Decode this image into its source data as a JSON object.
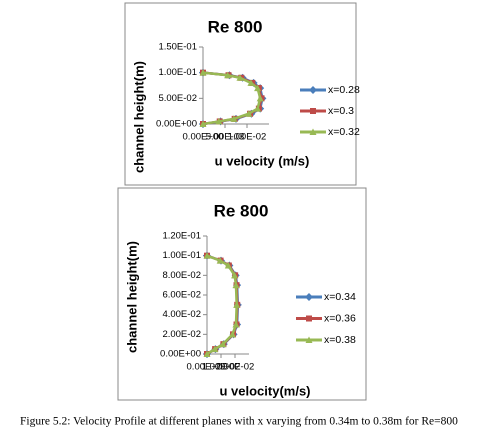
{
  "chart_data": [
    {
      "type": "line",
      "title": "Re 800",
      "ylabel": "channel height(m)",
      "xlabel": "u velocity (m/s)",
      "xlim": [
        0,
        0.015
      ],
      "xticks": [
        {
          "value": 0,
          "label": "0.00E+00"
        },
        {
          "value": 0.005,
          "label": "5.00E-03"
        },
        {
          "value": 0.01,
          "label": "1.00E-02"
        }
      ],
      "ylim": [
        0,
        0.15
      ],
      "yticks": [
        {
          "value": 0,
          "label": "0.00E+00"
        },
        {
          "value": 0.05,
          "label": "5.00E-02"
        },
        {
          "value": 0.1,
          "label": "1.00E-01"
        },
        {
          "value": 0.15,
          "label": "1.50E-01"
        }
      ],
      "series": [
        {
          "name": "x=0.28",
          "color": "#4a7ebb",
          "marker": "diamond",
          "x": [
            0,
            0.004,
            0.0075,
            0.011,
            0.013,
            0.0135,
            0.013,
            0.0115,
            0.009,
            0.006,
            0
          ],
          "values": [
            0,
            0.005,
            0.01,
            0.02,
            0.03,
            0.05,
            0.07,
            0.08,
            0.09,
            0.095,
            0.1
          ]
        },
        {
          "name": "x=0.3",
          "color": "#be4b48",
          "marker": "square",
          "x": [
            0,
            0.0038,
            0.0072,
            0.0107,
            0.0127,
            0.0133,
            0.0127,
            0.0112,
            0.0087,
            0.0058,
            0
          ],
          "values": [
            0,
            0.005,
            0.01,
            0.02,
            0.03,
            0.05,
            0.07,
            0.08,
            0.09,
            0.095,
            0.1
          ]
        },
        {
          "name": "x=0.32",
          "color": "#98b954",
          "marker": "triangle",
          "x": [
            0,
            0.0036,
            0.007,
            0.0104,
            0.0124,
            0.013,
            0.0124,
            0.0109,
            0.0084,
            0.0056,
            0
          ],
          "values": [
            0,
            0.005,
            0.01,
            0.02,
            0.03,
            0.05,
            0.07,
            0.08,
            0.09,
            0.095,
            0.1
          ]
        }
      ]
    },
    {
      "type": "line",
      "title": "Re 800",
      "ylabel": "channel height(m)",
      "xlabel": "u velocity(m/s)",
      "xlim": [
        0,
        0.03
      ],
      "xticks": [
        {
          "value": 0,
          "label": "0.00E+00"
        },
        {
          "value": 0.01,
          "label": "1.00E-02"
        },
        {
          "value": 0.02,
          "label": "2.00E-02"
        }
      ],
      "ylim": [
        0,
        0.12
      ],
      "yticks": [
        {
          "value": 0,
          "label": "0.00E+00"
        },
        {
          "value": 0.02,
          "label": "2.00E-02"
        },
        {
          "value": 0.04,
          "label": "4.00E-02"
        },
        {
          "value": 0.06,
          "label": "6.00E-02"
        },
        {
          "value": 0.08,
          "label": "8.00E-02"
        },
        {
          "value": 0.1,
          "label": "1.00E-01"
        },
        {
          "value": 0.12,
          "label": "1.20E-01"
        }
      ],
      "series": [
        {
          "name": "x=0.34",
          "color": "#4a7ebb",
          "marker": "diamond",
          "x": [
            0,
            0.006,
            0.012,
            0.019,
            0.0215,
            0.022,
            0.0215,
            0.0205,
            0.016,
            0.01,
            0
          ],
          "values": [
            0,
            0.005,
            0.01,
            0.02,
            0.03,
            0.05,
            0.07,
            0.08,
            0.09,
            0.095,
            0.1
          ]
        },
        {
          "name": "x=0.36",
          "color": "#be4b48",
          "marker": "square",
          "x": [
            0,
            0.0058,
            0.0117,
            0.0186,
            0.0211,
            0.0216,
            0.0211,
            0.0201,
            0.0156,
            0.0097,
            0
          ],
          "values": [
            0,
            0.005,
            0.01,
            0.02,
            0.03,
            0.05,
            0.07,
            0.08,
            0.09,
            0.095,
            0.1
          ]
        },
        {
          "name": "x=0.38",
          "color": "#98b954",
          "marker": "triangle",
          "x": [
            0,
            0.0056,
            0.0114,
            0.0182,
            0.0207,
            0.0212,
            0.0207,
            0.0197,
            0.0152,
            0.0094,
            0
          ],
          "values": [
            0,
            0.005,
            0.01,
            0.02,
            0.03,
            0.05,
            0.07,
            0.08,
            0.09,
            0.095,
            0.1
          ]
        }
      ]
    }
  ],
  "caption": "Figure 5.2: Velocity Profile at different planes with x varying from 0.34m to 0.38m for Re=800"
}
